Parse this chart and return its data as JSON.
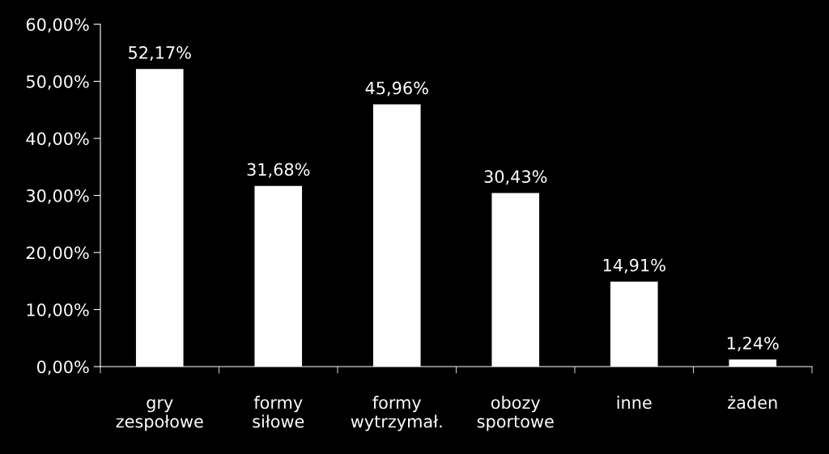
{
  "chart_data": {
    "type": "bar",
    "categories": [
      "gry\nzespołowe",
      "formy\nsiłowe",
      "formy\nwytrzymał.",
      "obozy\nsportowe",
      "inne",
      "żaden"
    ],
    "values": [
      52.17,
      31.68,
      45.96,
      30.43,
      14.91,
      1.24
    ],
    "value_labels": [
      "52,17%",
      "31,68%",
      "45,96%",
      "30,43%",
      "14,91%",
      "1,24%"
    ],
    "color": "#ffffff",
    "ylim": [
      0,
      60
    ],
    "yticks": [
      {
        "value": 0,
        "label": "0,00%"
      },
      {
        "value": 10,
        "label": "10,00%"
      },
      {
        "value": 20,
        "label": "20,00%"
      },
      {
        "value": 30,
        "label": "30,00%"
      },
      {
        "value": 40,
        "label": "40,00%"
      },
      {
        "value": 50,
        "label": "50,00%"
      },
      {
        "value": 60,
        "label": "60,00%"
      }
    ],
    "grid": false,
    "legend": false
  }
}
